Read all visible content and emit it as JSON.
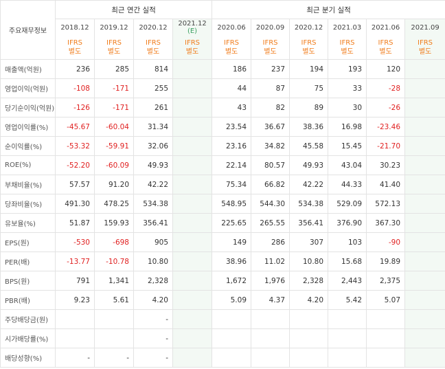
{
  "header": {
    "label": "주요재무정보",
    "annual_title": "최근 연간 실적",
    "quarter_title": "최근 분기 실적",
    "ifrs_line1": "IFRS",
    "ifrs_line2": "별도",
    "annual_periods": [
      "2018.12",
      "2019.12",
      "2020.12",
      "2021.12"
    ],
    "estimate_mark": "(E)",
    "quarter_periods": [
      "2020.06",
      "2020.09",
      "2020.12",
      "2021.03",
      "2021.06",
      "2021.09"
    ]
  },
  "rows": [
    {
      "label": "매출액(억원)",
      "annual": [
        "236",
        "285",
        "814",
        ""
      ],
      "quarter": [
        "186",
        "237",
        "194",
        "193",
        "120",
        ""
      ]
    },
    {
      "label": "영업이익(억원)",
      "annual": [
        "-108",
        "-171",
        "255",
        ""
      ],
      "quarter": [
        "44",
        "87",
        "75",
        "33",
        "-28",
        ""
      ]
    },
    {
      "label": "당기순이익(억원)",
      "annual": [
        "-126",
        "-171",
        "261",
        ""
      ],
      "quarter": [
        "43",
        "82",
        "89",
        "30",
        "-26",
        ""
      ]
    },
    {
      "label": "영업이익률(%)",
      "annual": [
        "-45.67",
        "-60.04",
        "31.34",
        ""
      ],
      "quarter": [
        "23.54",
        "36.67",
        "38.36",
        "16.98",
        "-23.46",
        ""
      ]
    },
    {
      "label": "순이익률(%)",
      "annual": [
        "-53.32",
        "-59.91",
        "32.06",
        ""
      ],
      "quarter": [
        "23.16",
        "34.82",
        "45.58",
        "15.45",
        "-21.70",
        ""
      ]
    },
    {
      "label": "ROE(%)",
      "annual": [
        "-52.20",
        "-60.09",
        "49.93",
        ""
      ],
      "quarter": [
        "22.14",
        "80.57",
        "49.93",
        "43.04",
        "30.23",
        ""
      ]
    },
    {
      "label": "부채비율(%)",
      "annual": [
        "57.57",
        "91.20",
        "42.22",
        ""
      ],
      "quarter": [
        "75.34",
        "66.82",
        "42.22",
        "44.33",
        "41.40",
        ""
      ]
    },
    {
      "label": "당좌비율(%)",
      "annual": [
        "491.30",
        "478.25",
        "534.38",
        ""
      ],
      "quarter": [
        "548.95",
        "544.30",
        "534.38",
        "529.09",
        "572.13",
        ""
      ]
    },
    {
      "label": "유보율(%)",
      "annual": [
        "51.87",
        "159.93",
        "356.41",
        ""
      ],
      "quarter": [
        "225.65",
        "265.55",
        "356.41",
        "376.90",
        "367.30",
        ""
      ]
    },
    {
      "label": "EPS(원)",
      "annual": [
        "-530",
        "-698",
        "905",
        ""
      ],
      "quarter": [
        "149",
        "286",
        "307",
        "103",
        "-90",
        ""
      ]
    },
    {
      "label": "PER(배)",
      "annual": [
        "-13.77",
        "-10.78",
        "10.80",
        ""
      ],
      "quarter": [
        "38.96",
        "11.02",
        "10.80",
        "15.68",
        "19.89",
        ""
      ]
    },
    {
      "label": "BPS(원)",
      "annual": [
        "791",
        "1,341",
        "2,328",
        ""
      ],
      "quarter": [
        "1,672",
        "1,976",
        "2,328",
        "2,443",
        "2,375",
        ""
      ]
    },
    {
      "label": "PBR(배)",
      "annual": [
        "9.23",
        "5.61",
        "4.20",
        ""
      ],
      "quarter": [
        "5.09",
        "4.37",
        "4.20",
        "5.42",
        "5.07",
        ""
      ]
    },
    {
      "label": "주당배당금(원)",
      "annual": [
        "",
        "",
        "-",
        ""
      ],
      "quarter": [
        "",
        "",
        "",
        "",
        "",
        ""
      ]
    },
    {
      "label": "시가배당률(%)",
      "annual": [
        "",
        "",
        "-",
        ""
      ],
      "quarter": [
        "",
        "",
        "",
        "",
        "",
        ""
      ]
    },
    {
      "label": "배당성향(%)",
      "annual": [
        "-",
        "-",
        "-",
        ""
      ],
      "quarter": [
        "",
        "",
        "",
        "",
        "",
        ""
      ]
    }
  ],
  "group_starts": [
    3,
    6,
    9,
    13
  ],
  "colors": {
    "negative": "#e01f1f",
    "ifrs": "#f07c1b",
    "estimate_bg": "#f3f9f4",
    "estimate_mark": "#3aa060"
  }
}
